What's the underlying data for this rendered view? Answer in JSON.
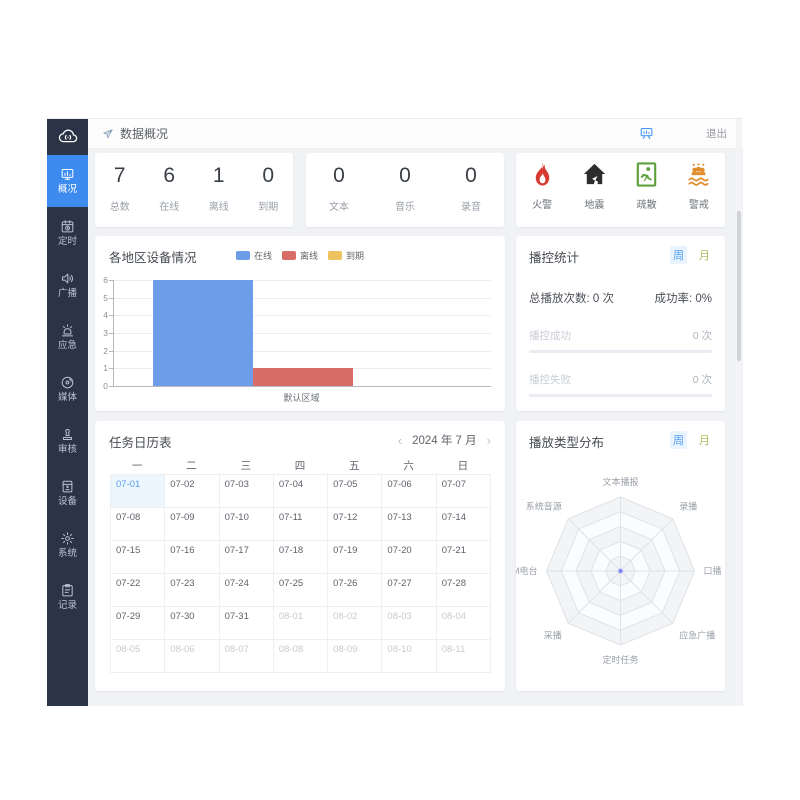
{
  "header": {
    "title": "数据概况",
    "logout_label": "退出"
  },
  "sidebar": {
    "logo_icon": "broadcast-cloud-logo",
    "items": [
      {
        "label": "概况",
        "icon": "dashboard-icon",
        "active": true
      },
      {
        "label": "定时",
        "icon": "timer-calendar-icon",
        "active": false
      },
      {
        "label": "广播",
        "icon": "speaker-icon",
        "active": false
      },
      {
        "label": "应急",
        "icon": "siren-icon",
        "active": false
      },
      {
        "label": "媒体",
        "icon": "disc-icon",
        "active": false
      },
      {
        "label": "审核",
        "icon": "stamp-icon",
        "active": false
      },
      {
        "label": "设备",
        "icon": "device-icon",
        "active": false
      },
      {
        "label": "系统",
        "icon": "gear-icon",
        "active": false
      },
      {
        "label": "记录",
        "icon": "clipboard-icon",
        "active": false
      }
    ]
  },
  "stats_devices": {
    "items": [
      {
        "value": "7",
        "label": "总数"
      },
      {
        "value": "6",
        "label": "在线"
      },
      {
        "value": "1",
        "label": "离线"
      },
      {
        "value": "0",
        "label": "到期"
      }
    ]
  },
  "stats_media": {
    "items": [
      {
        "value": "0",
        "label": "文本"
      },
      {
        "value": "0",
        "label": "音乐"
      },
      {
        "value": "0",
        "label": "录音"
      }
    ]
  },
  "emergency": {
    "items": [
      {
        "label": "火警",
        "icon": "fire-icon",
        "color": "#d63a30"
      },
      {
        "label": "地震",
        "icon": "earthquake-icon",
        "color": "#2d2d2d"
      },
      {
        "label": "疏散",
        "icon": "evacuation-icon",
        "color": "#5ea03c"
      },
      {
        "label": "警戒",
        "icon": "flood-alert-icon",
        "color": "#e08c2d"
      }
    ]
  },
  "chart_data": [
    {
      "type": "bar",
      "title": "各地区设备情况",
      "categories": [
        "默认区域"
      ],
      "series": [
        {
          "name": "在线",
          "color": "#6d9ce8",
          "values": [
            6
          ]
        },
        {
          "name": "离线",
          "color": "#d76d66",
          "values": [
            1
          ]
        },
        {
          "name": "到期",
          "color": "#eec25c",
          "values": [
            0
          ]
        }
      ],
      "ylim": [
        0,
        6
      ],
      "yticks": [
        0,
        1,
        2,
        3,
        4,
        5,
        6
      ],
      "grid": true,
      "legend_position": "top-center"
    },
    {
      "type": "radar",
      "title": "播放类型分布",
      "axes": [
        "文本播报",
        "录播",
        "口播",
        "应急广播",
        "定时任务",
        "采播",
        "FM电台",
        "系统音源"
      ],
      "series": [
        {
          "name": "播放类型",
          "values": [
            0,
            0,
            0,
            0,
            0,
            0,
            0,
            0
          ],
          "color": "#7c83ee"
        }
      ],
      "rings": 5,
      "max": 1
    }
  ],
  "broadcast_stats": {
    "title": "播控统计",
    "tabs": [
      {
        "label": "周",
        "active": true
      },
      {
        "label": "月",
        "active": false
      }
    ],
    "total_label": "总播放次数:",
    "total_value": "0 次",
    "rate_label": "成功率:",
    "rate_value": "0%",
    "rows": [
      {
        "label": "播控成功",
        "value": "0 次",
        "progress": 0
      },
      {
        "label": "播控失败",
        "value": "0 次",
        "progress": 0
      }
    ]
  },
  "calendar": {
    "title": "任务日历表",
    "prev": "‹",
    "next": "›",
    "month_label": "2024 年 7 月",
    "weekdays": [
      "一",
      "二",
      "三",
      "四",
      "五",
      "六",
      "日"
    ],
    "days": [
      {
        "date": "07-01",
        "selected": true
      },
      {
        "date": "07-02"
      },
      {
        "date": "07-03"
      },
      {
        "date": "07-04"
      },
      {
        "date": "07-05"
      },
      {
        "date": "07-06"
      },
      {
        "date": "07-07"
      },
      {
        "date": "07-08"
      },
      {
        "date": "07-09"
      },
      {
        "date": "07-10"
      },
      {
        "date": "07-11"
      },
      {
        "date": "07-12"
      },
      {
        "date": "07-13"
      },
      {
        "date": "07-14"
      },
      {
        "date": "07-15"
      },
      {
        "date": "07-16"
      },
      {
        "date": "07-17"
      },
      {
        "date": "07-18"
      },
      {
        "date": "07-19"
      },
      {
        "date": "07-20"
      },
      {
        "date": "07-21"
      },
      {
        "date": "07-22"
      },
      {
        "date": "07-23"
      },
      {
        "date": "07-24"
      },
      {
        "date": "07-25"
      },
      {
        "date": "07-26"
      },
      {
        "date": "07-27"
      },
      {
        "date": "07-28"
      },
      {
        "date": "07-29"
      },
      {
        "date": "07-30"
      },
      {
        "date": "07-31"
      },
      {
        "date": "08-01",
        "muted": true
      },
      {
        "date": "08-02",
        "muted": true
      },
      {
        "date": "08-03",
        "muted": true
      },
      {
        "date": "08-04",
        "muted": true
      },
      {
        "date": "08-05",
        "muted": true
      },
      {
        "date": "08-06",
        "muted": true
      },
      {
        "date": "08-07",
        "muted": true
      },
      {
        "date": "08-08",
        "muted": true
      },
      {
        "date": "08-09",
        "muted": true
      },
      {
        "date": "08-10",
        "muted": true
      },
      {
        "date": "08-11",
        "muted": true
      }
    ]
  },
  "radar_panel": {
    "title": "播放类型分布",
    "tabs": [
      {
        "label": "周",
        "active": true
      },
      {
        "label": "月",
        "active": false
      }
    ]
  }
}
